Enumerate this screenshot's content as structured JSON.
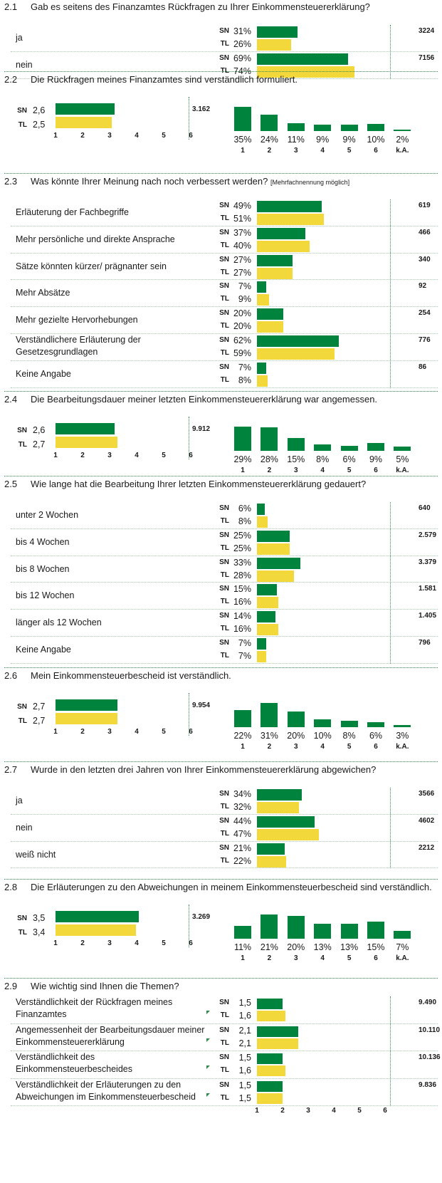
{
  "colors": {
    "sn": "#00843d",
    "tl": "#f2d83a",
    "divider": "#2e8a4a"
  },
  "labels": {
    "sn": "SN",
    "tl": "TL"
  },
  "scale_ticks": [
    "1",
    "2",
    "3",
    "4",
    "5",
    "6"
  ],
  "dist_ticks": [
    "1",
    "2",
    "3",
    "4",
    "5",
    "6",
    "k.A."
  ],
  "sections": [
    {
      "type": "multi",
      "num": "2.1",
      "question": "Gab es seitens des Finanzamtes Rückfragen zu Ihrer Einkommensteuererklärung?",
      "rows": [
        {
          "label": [
            "ja"
          ],
          "sn": 31,
          "tl": 26,
          "sn_text": "31%",
          "tl_text": "26%",
          "count": "3224"
        },
        {
          "label": [
            "nein"
          ],
          "sn": 69,
          "tl": 74,
          "sn_text": "69%",
          "tl_text": "74%",
          "count": "7156"
        }
      ]
    },
    {
      "type": "scale",
      "num": "2.2",
      "question": "Die Rückfragen meines Finanzamtes sind verständlich formuliert.",
      "sn": 2.6,
      "tl": 2.5,
      "sn_text": "2,6",
      "tl_text": "2,5",
      "count": "3.162",
      "dist": [
        35,
        24,
        11,
        9,
        9,
        10,
        2
      ]
    },
    {
      "type": "multi",
      "num": "2.3",
      "question": "Was könnte Ihrer Meinung nach noch verbessert werden?",
      "note": "[Mehrfachnennung möglich]",
      "rows": [
        {
          "label": [
            "Erläuterung der Fachbegriffe"
          ],
          "sn": 49,
          "tl": 51,
          "sn_text": "49%",
          "tl_text": "51%",
          "count": "619"
        },
        {
          "label": [
            "Mehr persönliche und direkte Ansprache"
          ],
          "sn": 37,
          "tl": 40,
          "sn_text": "37%",
          "tl_text": "40%",
          "count": "466"
        },
        {
          "label": [
            "Sätze könnten kürzer/ prägnanter sein"
          ],
          "sn": 27,
          "tl": 27,
          "sn_text": "27%",
          "tl_text": "27%",
          "count": "340"
        },
        {
          "label": [
            "Mehr Absätze"
          ],
          "sn": 7,
          "tl": 9,
          "sn_text": "7%",
          "tl_text": "9%",
          "count": "92"
        },
        {
          "label": [
            "Mehr gezielte Hervorhebungen"
          ],
          "sn": 20,
          "tl": 20,
          "sn_text": "20%",
          "tl_text": "20%",
          "count": "254"
        },
        {
          "label": [
            "Verständlichere Erläuterung der",
            "Gesetzesgrundlagen"
          ],
          "sn": 62,
          "tl": 59,
          "sn_text": "62%",
          "tl_text": "59%",
          "count": "776"
        },
        {
          "label": [
            "Keine Angabe"
          ],
          "sn": 7,
          "tl": 8,
          "sn_text": "7%",
          "tl_text": "8%",
          "count": "86"
        }
      ]
    },
    {
      "type": "scale",
      "num": "2.4",
      "question": "Die Bearbeitungsdauer meiner letzten Einkommensteuererklärung war angemessen.",
      "sn": 2.6,
      "tl": 2.7,
      "sn_text": "2,6",
      "tl_text": "2,7",
      "count": "9.912",
      "dist": [
        29,
        28,
        15,
        8,
        6,
        9,
        5
      ]
    },
    {
      "type": "multi",
      "num": "2.5",
      "question": "Wie lange hat die Bearbeitung Ihrer letzten Einkommensteuererklärung gedauert?",
      "rows": [
        {
          "label": [
            "unter 2 Wochen"
          ],
          "sn": 6,
          "tl": 8,
          "sn_text": "6%",
          "tl_text": "8%",
          "count": "640"
        },
        {
          "label": [
            "bis 4 Wochen"
          ],
          "sn": 25,
          "tl": 25,
          "sn_text": "25%",
          "tl_text": "25%",
          "count": "2.579"
        },
        {
          "label": [
            "bis 8 Wochen"
          ],
          "sn": 33,
          "tl": 28,
          "sn_text": "33%",
          "tl_text": "28%",
          "count": "3.379"
        },
        {
          "label": [
            "bis 12 Wochen"
          ],
          "sn": 15,
          "tl": 16,
          "sn_text": "15%",
          "tl_text": "16%",
          "count": "1.581"
        },
        {
          "label": [
            "länger als 12 Wochen"
          ],
          "sn": 14,
          "tl": 16,
          "sn_text": "14%",
          "tl_text": "16%",
          "count": "1.405"
        },
        {
          "label": [
            "Keine Angabe"
          ],
          "sn": 7,
          "tl": 7,
          "sn_text": "7%",
          "tl_text": "7%",
          "count": "796"
        }
      ]
    },
    {
      "type": "scale",
      "num": "2.6",
      "question": "Mein Einkommensteuerbescheid ist verständlich.",
      "sn": 2.7,
      "tl": 2.7,
      "sn_text": "2,7",
      "tl_text": "2,7",
      "count": "9.954",
      "dist": [
        22,
        31,
        20,
        10,
        8,
        6,
        3
      ]
    },
    {
      "type": "multi",
      "num": "2.7",
      "question": "Wurde in den letzten drei Jahren von Ihrer Einkommensteuererklärung abgewichen?",
      "rows": [
        {
          "label": [
            "ja"
          ],
          "sn": 34,
          "tl": 32,
          "sn_text": "34%",
          "tl_text": "32%",
          "count": "3566"
        },
        {
          "label": [
            "nein"
          ],
          "sn": 44,
          "tl": 47,
          "sn_text": "44%",
          "tl_text": "47%",
          "count": "4602"
        },
        {
          "label": [
            "weiß nicht"
          ],
          "sn": 21,
          "tl": 22,
          "sn_text": "21%",
          "tl_text": "22%",
          "count": "2212"
        }
      ]
    },
    {
      "type": "scale",
      "num": "2.8",
      "question": "Die Erläuterungen zu den Abweichungen in meinem Einkommensteuerbescheid sind verständlich.",
      "sn": 3.5,
      "tl": 3.4,
      "sn_text": "3,5",
      "tl_text": "3,4",
      "count": "3.269",
      "dist": [
        11,
        21,
        20,
        13,
        13,
        15,
        7
      ]
    },
    {
      "type": "importance",
      "num": "2.9",
      "question": "Wie wichtig sind Ihnen die Themen?",
      "rows": [
        {
          "label": [
            "Verständlichkeit der Rückfragen meines",
            "Finanzamtes"
          ],
          "sn": 1.5,
          "tl": 1.6,
          "sn_text": "1,5",
          "tl_text": "1,6",
          "count": "9.490"
        },
        {
          "label": [
            "Angemessenheit der Bearbeitungsdauer meiner",
            "Einkommensteuererklärung"
          ],
          "sn": 2.1,
          "tl": 2.1,
          "sn_text": "2,1",
          "tl_text": "2,1",
          "count": "10.110"
        },
        {
          "label": [
            "Verständlichkeit des",
            "Einkommensteuerbescheides"
          ],
          "sn": 1.5,
          "tl": 1.6,
          "sn_text": "1,5",
          "tl_text": "1,6",
          "count": "10.136"
        },
        {
          "label": [
            "Verständlichkeit der Erläuterungen zu den",
            "Abweichungen im Einkommensteuerbescheid"
          ],
          "sn": 1.5,
          "tl": 1.5,
          "sn_text": "1,5",
          "tl_text": "1,5",
          "count": "9.836"
        }
      ]
    }
  ]
}
